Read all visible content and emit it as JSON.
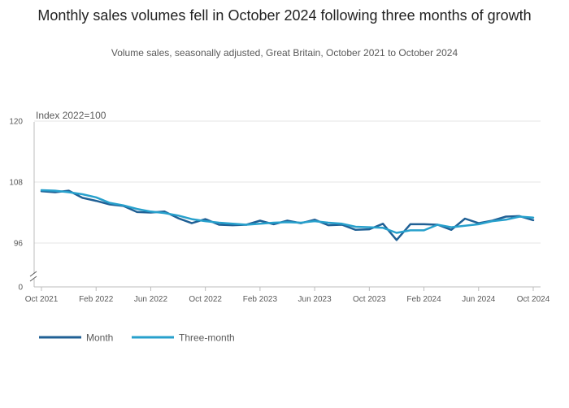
{
  "header": {
    "title": "Monthly sales volumes fell in October 2024 following three months of growth",
    "subtitle": "Volume sales, seasonally adjusted, Great Britain, October 2021 to October 2024"
  },
  "colors": {
    "month": "#206095",
    "three_month": "#27a0cc",
    "grid": "#e6e6e6",
    "axis": "#bcbcbc"
  },
  "chart_data": {
    "type": "line",
    "title": "Monthly sales volumes fell in October 2024 following three months of growth",
    "ylabel": "Index 2022=100",
    "xlabel": "",
    "y_ticks": [
      "120",
      "108",
      "96",
      "0"
    ],
    "y_tick_values": [
      120,
      108,
      96,
      0
    ],
    "axis_break": true,
    "ylim": [
      0,
      120
    ],
    "x_tick_labels": [
      "Oct 2021",
      "Feb 2022",
      "Jun 2022",
      "Oct 2022",
      "Feb 2023",
      "Jun 2023",
      "Oct 2023",
      "Feb 2024",
      "Jun 2024",
      "Oct 2024"
    ],
    "x_tick_indices": [
      0,
      4,
      8,
      12,
      16,
      20,
      24,
      28,
      32,
      36
    ],
    "x": [
      "Oct 2021",
      "Nov 2021",
      "Dec 2021",
      "Jan 2022",
      "Feb 2022",
      "Mar 2022",
      "Apr 2022",
      "May 2022",
      "Jun 2022",
      "Jul 2022",
      "Aug 2022",
      "Sep 2022",
      "Oct 2022",
      "Nov 2022",
      "Dec 2022",
      "Jan 2023",
      "Feb 2023",
      "Mar 2023",
      "Apr 2023",
      "May 2023",
      "Jun 2023",
      "Jul 2023",
      "Aug 2023",
      "Sep 2023",
      "Oct 2023",
      "Nov 2023",
      "Dec 2023",
      "Jan 2024",
      "Feb 2024",
      "Mar 2024",
      "Apr 2024",
      "May 2024",
      "Jun 2024",
      "Jul 2024",
      "Aug 2024",
      "Sep 2024",
      "Oct 2024"
    ],
    "series": [
      {
        "name": "Month",
        "color": "#206095",
        "values": [
          106.2,
          106.0,
          106.3,
          104.9,
          104.3,
          103.6,
          103.3,
          102.1,
          102.0,
          102.2,
          100.9,
          99.9,
          100.7,
          99.6,
          99.5,
          99.6,
          100.4,
          99.7,
          100.4,
          99.9,
          100.6,
          99.5,
          99.6,
          98.6,
          98.7,
          99.8,
          96.6,
          99.7,
          99.7,
          99.6,
          98.6,
          100.8,
          99.9,
          100.4,
          101.2,
          101.3,
          100.5
        ]
      },
      {
        "name": "Three-month",
        "color": "#27a0cc",
        "values": [
          106.4,
          106.3,
          106.0,
          105.6,
          105.0,
          103.9,
          103.4,
          102.7,
          102.2,
          101.9,
          101.4,
          100.7,
          100.3,
          100.0,
          99.8,
          99.6,
          99.8,
          100.0,
          100.1,
          100.0,
          100.3,
          100.0,
          99.8,
          99.2,
          99.1,
          99.0,
          98.0,
          98.5,
          98.5,
          99.6,
          99.1,
          99.4,
          99.7,
          100.3,
          100.6,
          101.2,
          101.0
        ]
      }
    ],
    "legend": [
      "Month",
      "Three-month"
    ],
    "legend_position": "bottom-left"
  }
}
